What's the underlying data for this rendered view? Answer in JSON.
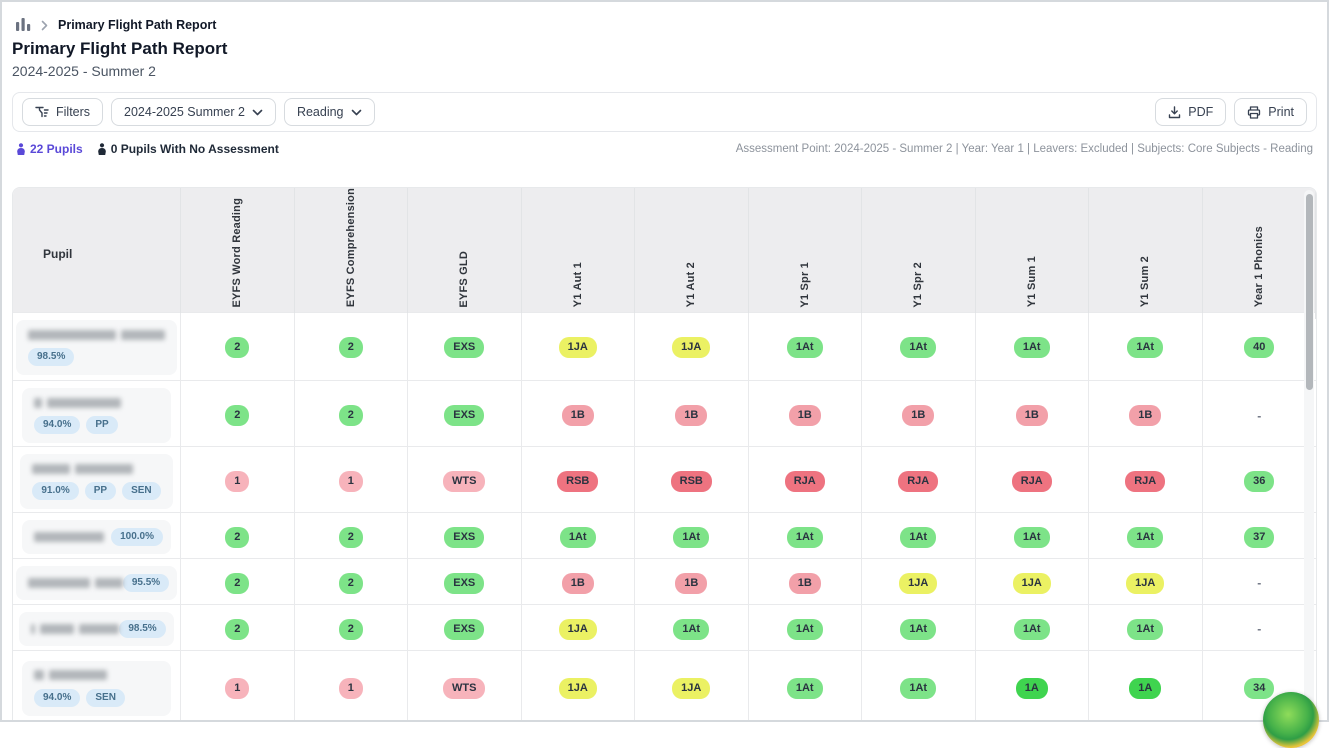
{
  "breadcrumb": {
    "current": "Primary Flight Path Report"
  },
  "header": {
    "title": "Primary Flight Path Report",
    "subtitle": "2024-2025 - Summer 2"
  },
  "toolbar": {
    "filters_label": "Filters",
    "period_select": "2024-2025 Summer 2",
    "subject_select": "Reading",
    "pdf_label": "PDF",
    "print_label": "Print"
  },
  "infobar": {
    "pupils_count": "22 Pupils",
    "no_assessment": "0 Pupils With No Assessment",
    "summary": "Assessment Point: 2024-2025 - Summer 2 | Year: Year 1 | Leavers: Excluded | Subjects: Core Subjects - Reading"
  },
  "palette": {
    "green": "#7de388",
    "green_bright": "#3fd44f",
    "yellow": "#ebf163",
    "pink": "#f7b3bb",
    "salmon": "#f2a0a9",
    "red": "#ee7380",
    "tag_bg": "#d9eaf8",
    "tag_text": "#47708c",
    "accent_purple": "#5a49d8"
  },
  "table": {
    "pupil_header": "Pupil",
    "columns": [
      "EYFS Word Reading",
      "EYFS Comprehension",
      "EYFS GLD",
      "Y1 Aut 1",
      "Y1 Aut 2",
      "Y1 Spr 1",
      "Y1 Spr 2",
      "Y1 Sum 1",
      "Y1 Sum 2",
      "Year 1 Phonics"
    ],
    "rows": [
      {
        "name_redacted": true,
        "name_blocks": [
          88,
          44
        ],
        "tags": [
          "98.5%"
        ],
        "tag_layout": "below",
        "cells": [
          {
            "t": "2",
            "c": "green"
          },
          {
            "t": "2",
            "c": "green"
          },
          {
            "t": "EXS",
            "c": "green"
          },
          {
            "t": "1JA",
            "c": "yellow"
          },
          {
            "t": "1JA",
            "c": "yellow"
          },
          {
            "t": "1At",
            "c": "green"
          },
          {
            "t": "1At",
            "c": "green"
          },
          {
            "t": "1At",
            "c": "green"
          },
          {
            "t": "1At",
            "c": "green"
          },
          {
            "t": "40",
            "c": "green"
          }
        ]
      },
      {
        "name_redacted": true,
        "name_blocks": [
          8,
          74
        ],
        "tags": [
          "94.0%",
          "PP"
        ],
        "tag_layout": "below",
        "cells": [
          {
            "t": "2",
            "c": "green"
          },
          {
            "t": "2",
            "c": "green"
          },
          {
            "t": "EXS",
            "c": "green"
          },
          {
            "t": "1B",
            "c": "salmon"
          },
          {
            "t": "1B",
            "c": "salmon"
          },
          {
            "t": "1B",
            "c": "salmon"
          },
          {
            "t": "1B",
            "c": "salmon"
          },
          {
            "t": "1B",
            "c": "salmon"
          },
          {
            "t": "1B",
            "c": "salmon"
          },
          {
            "t": "-",
            "c": "none"
          }
        ]
      },
      {
        "name_redacted": true,
        "name_blocks": [
          38,
          58
        ],
        "tags": [
          "91.0%",
          "PP",
          "SEN"
        ],
        "tag_layout": "below",
        "cells": [
          {
            "t": "1",
            "c": "pink"
          },
          {
            "t": "1",
            "c": "pink"
          },
          {
            "t": "WTS",
            "c": "pink"
          },
          {
            "t": "RSB",
            "c": "red"
          },
          {
            "t": "RSB",
            "c": "red"
          },
          {
            "t": "RJA",
            "c": "red"
          },
          {
            "t": "RJA",
            "c": "red"
          },
          {
            "t": "RJA",
            "c": "red"
          },
          {
            "t": "RJA",
            "c": "red"
          },
          {
            "t": "36",
            "c": "green"
          }
        ]
      },
      {
        "name_redacted": true,
        "name_blocks": [
          70
        ],
        "tags": [
          "100.0%"
        ],
        "tag_layout": "inline",
        "cells": [
          {
            "t": "2",
            "c": "green"
          },
          {
            "t": "2",
            "c": "green"
          },
          {
            "t": "EXS",
            "c": "green"
          },
          {
            "t": "1At",
            "c": "green"
          },
          {
            "t": "1At",
            "c": "green"
          },
          {
            "t": "1At",
            "c": "green"
          },
          {
            "t": "1At",
            "c": "green"
          },
          {
            "t": "1At",
            "c": "green"
          },
          {
            "t": "1At",
            "c": "green"
          },
          {
            "t": "37",
            "c": "green"
          }
        ]
      },
      {
        "name_redacted": true,
        "name_blocks": [
          62,
          28
        ],
        "tags": [
          "95.5%"
        ],
        "tag_layout": "inline",
        "cells": [
          {
            "t": "2",
            "c": "green"
          },
          {
            "t": "2",
            "c": "green"
          },
          {
            "t": "EXS",
            "c": "green"
          },
          {
            "t": "1B",
            "c": "salmon"
          },
          {
            "t": "1B",
            "c": "salmon"
          },
          {
            "t": "1B",
            "c": "salmon"
          },
          {
            "t": "1JA",
            "c": "yellow"
          },
          {
            "t": "1JA",
            "c": "yellow"
          },
          {
            "t": "1JA",
            "c": "yellow"
          },
          {
            "t": "-",
            "c": "none"
          }
        ]
      },
      {
        "name_redacted": true,
        "name_blocks": [
          4,
          34,
          40
        ],
        "tags": [
          "98.5%"
        ],
        "tag_layout": "inline",
        "cells": [
          {
            "t": "2",
            "c": "green"
          },
          {
            "t": "2",
            "c": "green"
          },
          {
            "t": "EXS",
            "c": "green"
          },
          {
            "t": "1JA",
            "c": "yellow"
          },
          {
            "t": "1At",
            "c": "green"
          },
          {
            "t": "1At",
            "c": "green"
          },
          {
            "t": "1At",
            "c": "green"
          },
          {
            "t": "1At",
            "c": "green"
          },
          {
            "t": "1At",
            "c": "green"
          },
          {
            "t": "-",
            "c": "none"
          }
        ]
      },
      {
        "name_redacted": true,
        "name_blocks": [
          10,
          58
        ],
        "tags": [
          "94.0%",
          "SEN"
        ],
        "tag_layout": "below",
        "cells": [
          {
            "t": "1",
            "c": "pink"
          },
          {
            "t": "1",
            "c": "pink"
          },
          {
            "t": "WTS",
            "c": "pink"
          },
          {
            "t": "1JA",
            "c": "yellow"
          },
          {
            "t": "1JA",
            "c": "yellow"
          },
          {
            "t": "1At",
            "c": "green"
          },
          {
            "t": "1At",
            "c": "green"
          },
          {
            "t": "1A",
            "c": "green_bright"
          },
          {
            "t": "1A",
            "c": "green_bright"
          },
          {
            "t": "34",
            "c": "green"
          }
        ]
      }
    ]
  }
}
